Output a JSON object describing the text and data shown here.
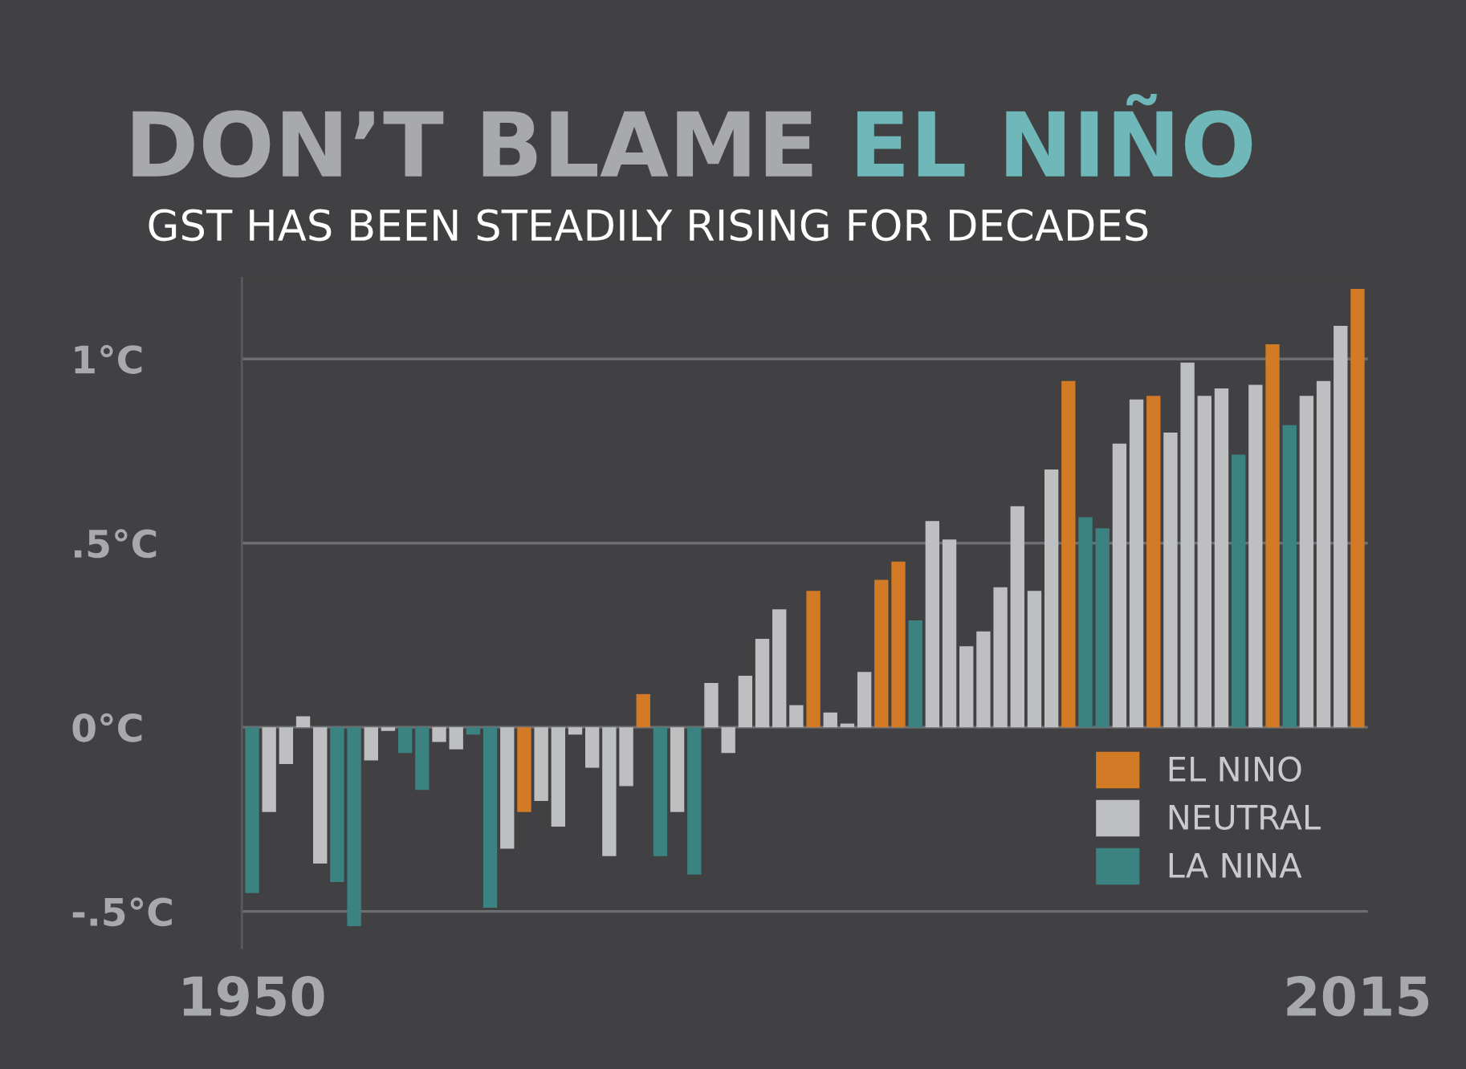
{
  "chart_data": {
    "type": "bar",
    "title": "DON’T BLAME EL NIÑO",
    "subtitle": "GST HAS BEEN STEADILY RISING FOR DECADES",
    "categories": [
      "1950",
      null,
      null,
      null,
      null,
      null,
      null,
      null,
      null,
      null,
      null,
      null,
      null,
      null,
      null,
      null,
      null,
      null,
      null,
      null,
      null,
      null,
      null,
      null,
      null,
      null,
      null,
      null,
      null,
      null,
      null,
      null,
      null,
      null,
      null,
      null,
      null,
      null,
      null,
      null,
      null,
      null,
      null,
      null,
      null,
      null,
      null,
      null,
      null,
      null,
      null,
      null,
      null,
      null,
      null,
      null,
      null,
      null,
      null,
      null,
      null,
      null,
      null,
      null,
      null,
      "2015"
    ],
    "series": [
      {
        "name": "EL NINO",
        "color": "#d37a27",
        "values": [
          null,
          null,
          null,
          null,
          null,
          null,
          null,
          null,
          null,
          null,
          null,
          null,
          null,
          null,
          null,
          null,
          -0.23,
          null,
          null,
          null,
          null,
          null,
          null,
          0.09,
          null,
          null,
          null,
          null,
          null,
          null,
          null,
          null,
          null,
          0.37,
          null,
          null,
          null,
          0.4,
          0.45,
          null,
          null,
          null,
          null,
          null,
          null,
          null,
          null,
          null,
          0.94,
          null,
          null,
          null,
          null,
          0.9,
          null,
          null,
          null,
          null,
          null,
          null,
          1.04,
          null,
          null,
          null,
          null,
          1.19
        ]
      },
      {
        "name": "NEUTRAL",
        "color": "#bebfc1",
        "values": [
          null,
          -0.23,
          -0.1,
          0.03,
          -0.37,
          null,
          null,
          -0.09,
          -0.01,
          null,
          null,
          -0.04,
          -0.06,
          null,
          null,
          -0.33,
          null,
          -0.2,
          -0.27,
          -0.02,
          -0.11,
          -0.35,
          -0.16,
          null,
          null,
          -0.23,
          null,
          0.12,
          -0.07,
          0.14,
          0.24,
          0.32,
          0.06,
          null,
          0.04,
          0.01,
          0.15,
          null,
          null,
          null,
          0.56,
          0.51,
          0.22,
          0.26,
          0.38,
          0.6,
          0.37,
          0.7,
          null,
          null,
          null,
          0.77,
          0.89,
          null,
          0.8,
          0.99,
          0.9,
          0.92,
          null,
          0.93,
          null,
          null,
          0.9,
          0.94,
          1.09,
          null
        ]
      },
      {
        "name": "LA NINA",
        "color": "#3b8380",
        "values": [
          -0.45,
          null,
          null,
          null,
          null,
          -0.42,
          -0.54,
          null,
          null,
          -0.07,
          -0.17,
          null,
          null,
          -0.02,
          -0.49,
          null,
          null,
          null,
          null,
          null,
          null,
          null,
          null,
          null,
          -0.35,
          null,
          -0.4,
          null,
          null,
          null,
          null,
          null,
          null,
          null,
          null,
          null,
          null,
          null,
          null,
          0.29,
          null,
          null,
          null,
          null,
          null,
          null,
          null,
          null,
          null,
          0.57,
          0.54,
          null,
          null,
          null,
          null,
          null,
          null,
          null,
          0.74,
          null,
          null,
          0.82,
          null,
          null,
          null,
          null
        ]
      }
    ],
    "ylim": [
      -0.6,
      1.22
    ],
    "yticks": [
      {
        "value": -0.5,
        "label": "-.5°C"
      },
      {
        "value": 0,
        "label": "0°C"
      },
      {
        "value": 0.5,
        "label": ".5°C"
      },
      {
        "value": 1,
        "label": "1°C"
      }
    ],
    "grid": "y",
    "legend": "bottom right"
  }
}
